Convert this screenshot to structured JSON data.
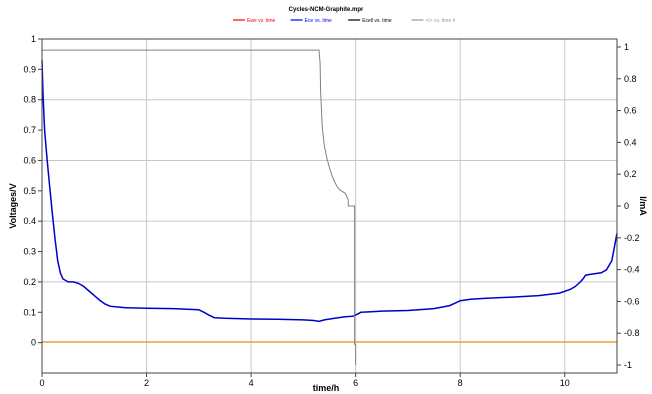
{
  "chart_data": {
    "type": "line",
    "title": "Cycles-NCM-Graphite.mpr",
    "xlabel": "time/h",
    "ylabel": "Voltages/V",
    "y2label": "I/mA",
    "xlim": [
      0,
      11
    ],
    "ylim": [
      -0.1,
      1
    ],
    "y2lim": [
      -1.05,
      1.05
    ],
    "xticks": [
      "0",
      "2",
      "4",
      "6",
      "8",
      "10"
    ],
    "xtick_values": [
      0,
      2,
      4,
      6,
      8,
      10
    ],
    "yticks": [
      "0",
      "0.1",
      "0.2",
      "0.3",
      "0.4",
      "0.5",
      "0.6",
      "0.7",
      "0.8",
      "0.9",
      "1"
    ],
    "ytick_values": [
      0,
      0.1,
      0.2,
      0.3,
      0.4,
      0.5,
      0.6,
      0.7,
      0.8,
      0.9,
      1
    ],
    "y2ticks": [
      "-1",
      "-0.8",
      "-0.6",
      "-0.4",
      "-0.2",
      "0",
      "0.2",
      "0.4",
      "0.6",
      "0.8",
      "1"
    ],
    "y2tick_values": [
      -1,
      -0.8,
      -0.6,
      -0.4,
      -0.2,
      0,
      0.2,
      0.4,
      0.6,
      0.8,
      1
    ],
    "grid": true,
    "legend_position": "top",
    "legend": [
      {
        "label": "Ewe vs. time",
        "color": "#ff0000"
      },
      {
        "label": "Ece vs. time",
        "color": "#0000ff"
      },
      {
        "label": "Ecell vs. time",
        "color": "#000000"
      },
      {
        "label": "<I> vs. time #",
        "color": "#999999"
      }
    ],
    "series": [
      {
        "name": "Ece vs. time",
        "axis": "left",
        "color": "#0000cc",
        "x": [
          0,
          0.02,
          0.05,
          0.1,
          0.15,
          0.2,
          0.25,
          0.3,
          0.35,
          0.4,
          0.45,
          0.5,
          0.6,
          0.7,
          0.8,
          0.9,
          1.0,
          1.1,
          1.2,
          1.3,
          1.4,
          1.6,
          2.0,
          2.5,
          3.0,
          3.1,
          3.2,
          3.3,
          3.5,
          4.0,
          4.5,
          5.0,
          5.2,
          5.3,
          5.4,
          5.6,
          5.8,
          5.95,
          6.05,
          6.1,
          6.3,
          6.5,
          7.0,
          7.5,
          7.8,
          7.9,
          8.0,
          8.2,
          8.5,
          9.0,
          9.5,
          9.9,
          10.1,
          10.2,
          10.3,
          10.35,
          10.4,
          10.5,
          10.7,
          10.8,
          10.9,
          11.0
        ],
        "y": [
          0.93,
          0.82,
          0.7,
          0.6,
          0.51,
          0.42,
          0.34,
          0.27,
          0.23,
          0.21,
          0.205,
          0.2,
          0.2,
          0.195,
          0.185,
          0.17,
          0.155,
          0.14,
          0.128,
          0.12,
          0.118,
          0.115,
          0.113,
          0.112,
          0.108,
          0.1,
          0.09,
          0.082,
          0.08,
          0.078,
          0.077,
          0.075,
          0.073,
          0.07,
          0.075,
          0.08,
          0.085,
          0.087,
          0.095,
          0.1,
          0.102,
          0.104,
          0.106,
          0.112,
          0.122,
          0.13,
          0.138,
          0.143,
          0.146,
          0.15,
          0.155,
          0.163,
          0.175,
          0.185,
          0.2,
          0.21,
          0.222,
          0.225,
          0.23,
          0.24,
          0.27,
          0.36
        ]
      },
      {
        "name": "Ewe vs. time",
        "axis": "left",
        "color": "#e8a040",
        "x": [
          0,
          11
        ],
        "y": [
          0.002,
          0.002
        ]
      },
      {
        "name": "<I> vs. time #",
        "axis": "right",
        "color": "#808080",
        "x": [
          0,
          0.02,
          5.3,
          5.32,
          5.33,
          5.36,
          5.4,
          5.45,
          5.5,
          5.55,
          5.6,
          5.65,
          5.7,
          5.75,
          5.8,
          5.82,
          5.84,
          5.86,
          5.86,
          5.98,
          5.98,
          6.0,
          6.0
        ],
        "y": [
          0.98,
          0.98,
          0.98,
          0.9,
          0.72,
          0.5,
          0.38,
          0.3,
          0.24,
          0.19,
          0.15,
          0.12,
          0.1,
          0.09,
          0.08,
          0.07,
          0.05,
          0.04,
          0.0,
          0.0,
          -0.87,
          -0.87,
          -1.0
        ]
      }
    ]
  }
}
